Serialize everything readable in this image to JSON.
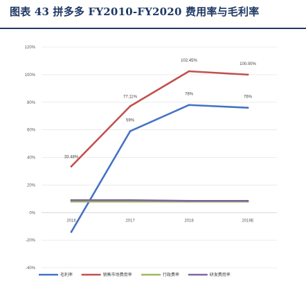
{
  "header": {
    "title": "图表 43 拼多多 FY2010-FY2020 费用率与毛利率"
  },
  "chart_data": {
    "type": "line",
    "title": "",
    "xlabel": "",
    "ylabel": "",
    "categories": [
      "2016",
      "2017",
      "2018",
      "2019E"
    ],
    "ylim": [
      -40,
      120
    ],
    "yticks": [
      -40,
      -20,
      0,
      20,
      40,
      60,
      80,
      100,
      120
    ],
    "ytick_labels": [
      "-40%",
      "-20%",
      "0%",
      "20%",
      "40%",
      "60%",
      "80%",
      "100%",
      "120%"
    ],
    "grid": true,
    "legend_position": "bottom",
    "series": [
      {
        "name": "毛利率",
        "color": "#4472c4",
        "values": [
          -14,
          59,
          78,
          76
        ],
        "data_labels": [
          "",
          "59%",
          "78%",
          "76%"
        ]
      },
      {
        "name": "销售市场费用率",
        "color": "#c0504d",
        "values": [
          33.48,
          77.11,
          102.45,
          100.0
        ],
        "data_labels": [
          "33.48%",
          "77.11%",
          "102.45%",
          "100.00%"
        ]
      },
      {
        "name": "行政费率",
        "color": "#9bbb59",
        "values": [
          8,
          8,
          8,
          8
        ],
        "data_labels": [
          "",
          "",
          "",
          ""
        ]
      },
      {
        "name": "研发费用率",
        "color": "#8064a2",
        "values": [
          9,
          9,
          8.5,
          8.5
        ],
        "data_labels": [
          "",
          "",
          "",
          ""
        ]
      }
    ]
  }
}
